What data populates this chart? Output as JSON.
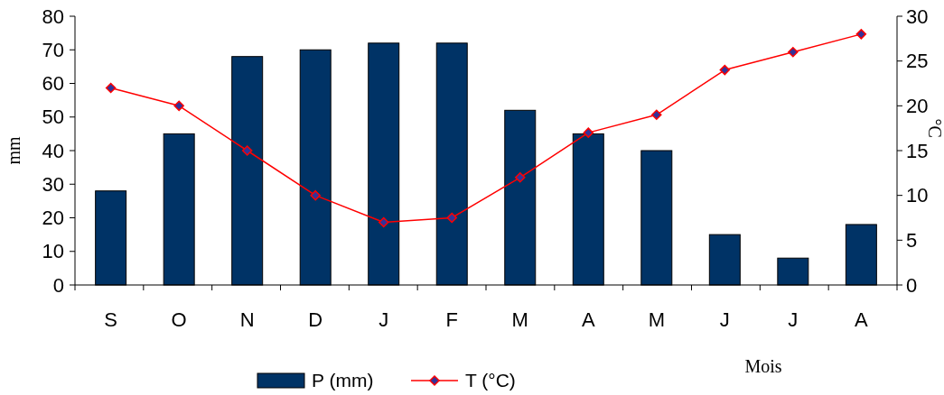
{
  "chart_data": {
    "type": "bar",
    "xlabel": "Mois",
    "ylabel": "mm",
    "y2label": "°C",
    "categories": [
      "S",
      "O",
      "N",
      "D",
      "J",
      "F",
      "M",
      "A",
      "M",
      "J",
      "J",
      "A"
    ],
    "series": [
      {
        "name": "P (mm)",
        "color": "#003366",
        "values": [
          28,
          45,
          68,
          70,
          72,
          72,
          52,
          45,
          40,
          15,
          8,
          18
        ]
      },
      {
        "name": "T (°C)",
        "type": "line",
        "axis": "y2",
        "color": "#ff0000",
        "marker": "diamond",
        "values": [
          22,
          20,
          15,
          10,
          7,
          7.5,
          12,
          17,
          19,
          24,
          26,
          28
        ]
      }
    ],
    "ylim": [
      0,
      80
    ],
    "yticks": [
      0,
      10,
      20,
      30,
      40,
      50,
      60,
      70,
      80
    ],
    "y2lim": [
      0,
      30
    ],
    "y2ticks": [
      0,
      5,
      10,
      15,
      20,
      25,
      30
    ],
    "grid": false,
    "legend": "bottom"
  }
}
